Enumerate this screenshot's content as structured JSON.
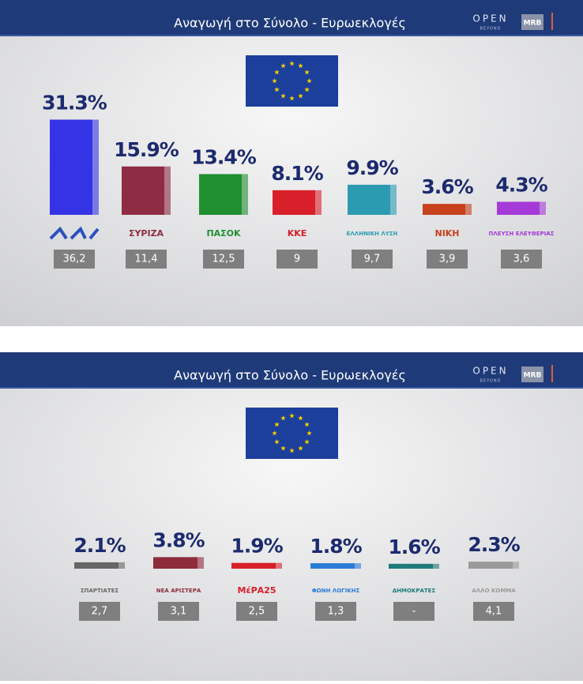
{
  "chart_data": [
    {
      "type": "bar",
      "title": "Αναγωγή στο Σύνολο - Ευρωεκλογές",
      "logos": [
        "OPEN",
        "BEYOND",
        "MRB"
      ],
      "categories": [
        null,
        "ΣΥΡΙΖΑ",
        "ΠΑΣΟΚ",
        "ΚΚΕ",
        "ΕΛΛΗΝΙΚΗ ΛΥΣΗ",
        "ΝΙΚΗ",
        "ΠΛΕΥΣΗ ΕΛΕΥΘΕΡΙΑΣ"
      ],
      "values": [
        31.3,
        15.9,
        13.4,
        8.1,
        9.9,
        3.6,
        4.3
      ],
      "value_labels": [
        "31.3%",
        "15.9%",
        "13.4%",
        "8.1%",
        "9.9%",
        "3.6%",
        "4.3%"
      ],
      "colors": [
        "#3434e6",
        "#8e2c44",
        "#1f8f30",
        "#d81f2a",
        "#2b9bb2",
        "#c8401c",
        "#a63ad8"
      ],
      "previous": [
        36.2,
        11.4,
        12.5,
        9,
        9.7,
        3.9,
        3.6
      ],
      "previous_labels": [
        "36,2",
        "11,4",
        "12,5",
        "9",
        "9,7",
        "3,9",
        "3,6"
      ]
    },
    {
      "type": "bar",
      "title": "Αναγωγή στο Σύνολο - Ευρωεκλογές",
      "logos": [
        "OPEN",
        "BEYOND",
        "MRB"
      ],
      "categories": [
        "ΣΠΑΡΤΙΑΤΕΣ",
        "ΝΕΑ ΑΡΙΣΤΕΡΑ",
        "ΜέΡΑ25",
        "ΦΩΝΗ ΛΟΓΙΚΗΣ",
        "ΔΗΜΟΚΡΑΤΕΣ",
        "ΑΛΛΟ ΚΟΜΜΑ"
      ],
      "values": [
        2.1,
        3.8,
        1.9,
        1.8,
        1.6,
        2.3
      ],
      "value_labels": [
        "2.1%",
        "3.8%",
        "1.9%",
        "1.8%",
        "1.6%",
        "2.3%"
      ],
      "colors": [
        "#666666",
        "#8e2c3c",
        "#d81f2a",
        "#2b7bd8",
        "#1f7a7a",
        "#9a9a9a"
      ],
      "previous": [
        2.7,
        3.1,
        2.5,
        1.3,
        null,
        4.1
      ],
      "previous_labels": [
        "2,7",
        "3,1",
        "2,5",
        "1,3",
        "-",
        "4,1"
      ]
    }
  ]
}
